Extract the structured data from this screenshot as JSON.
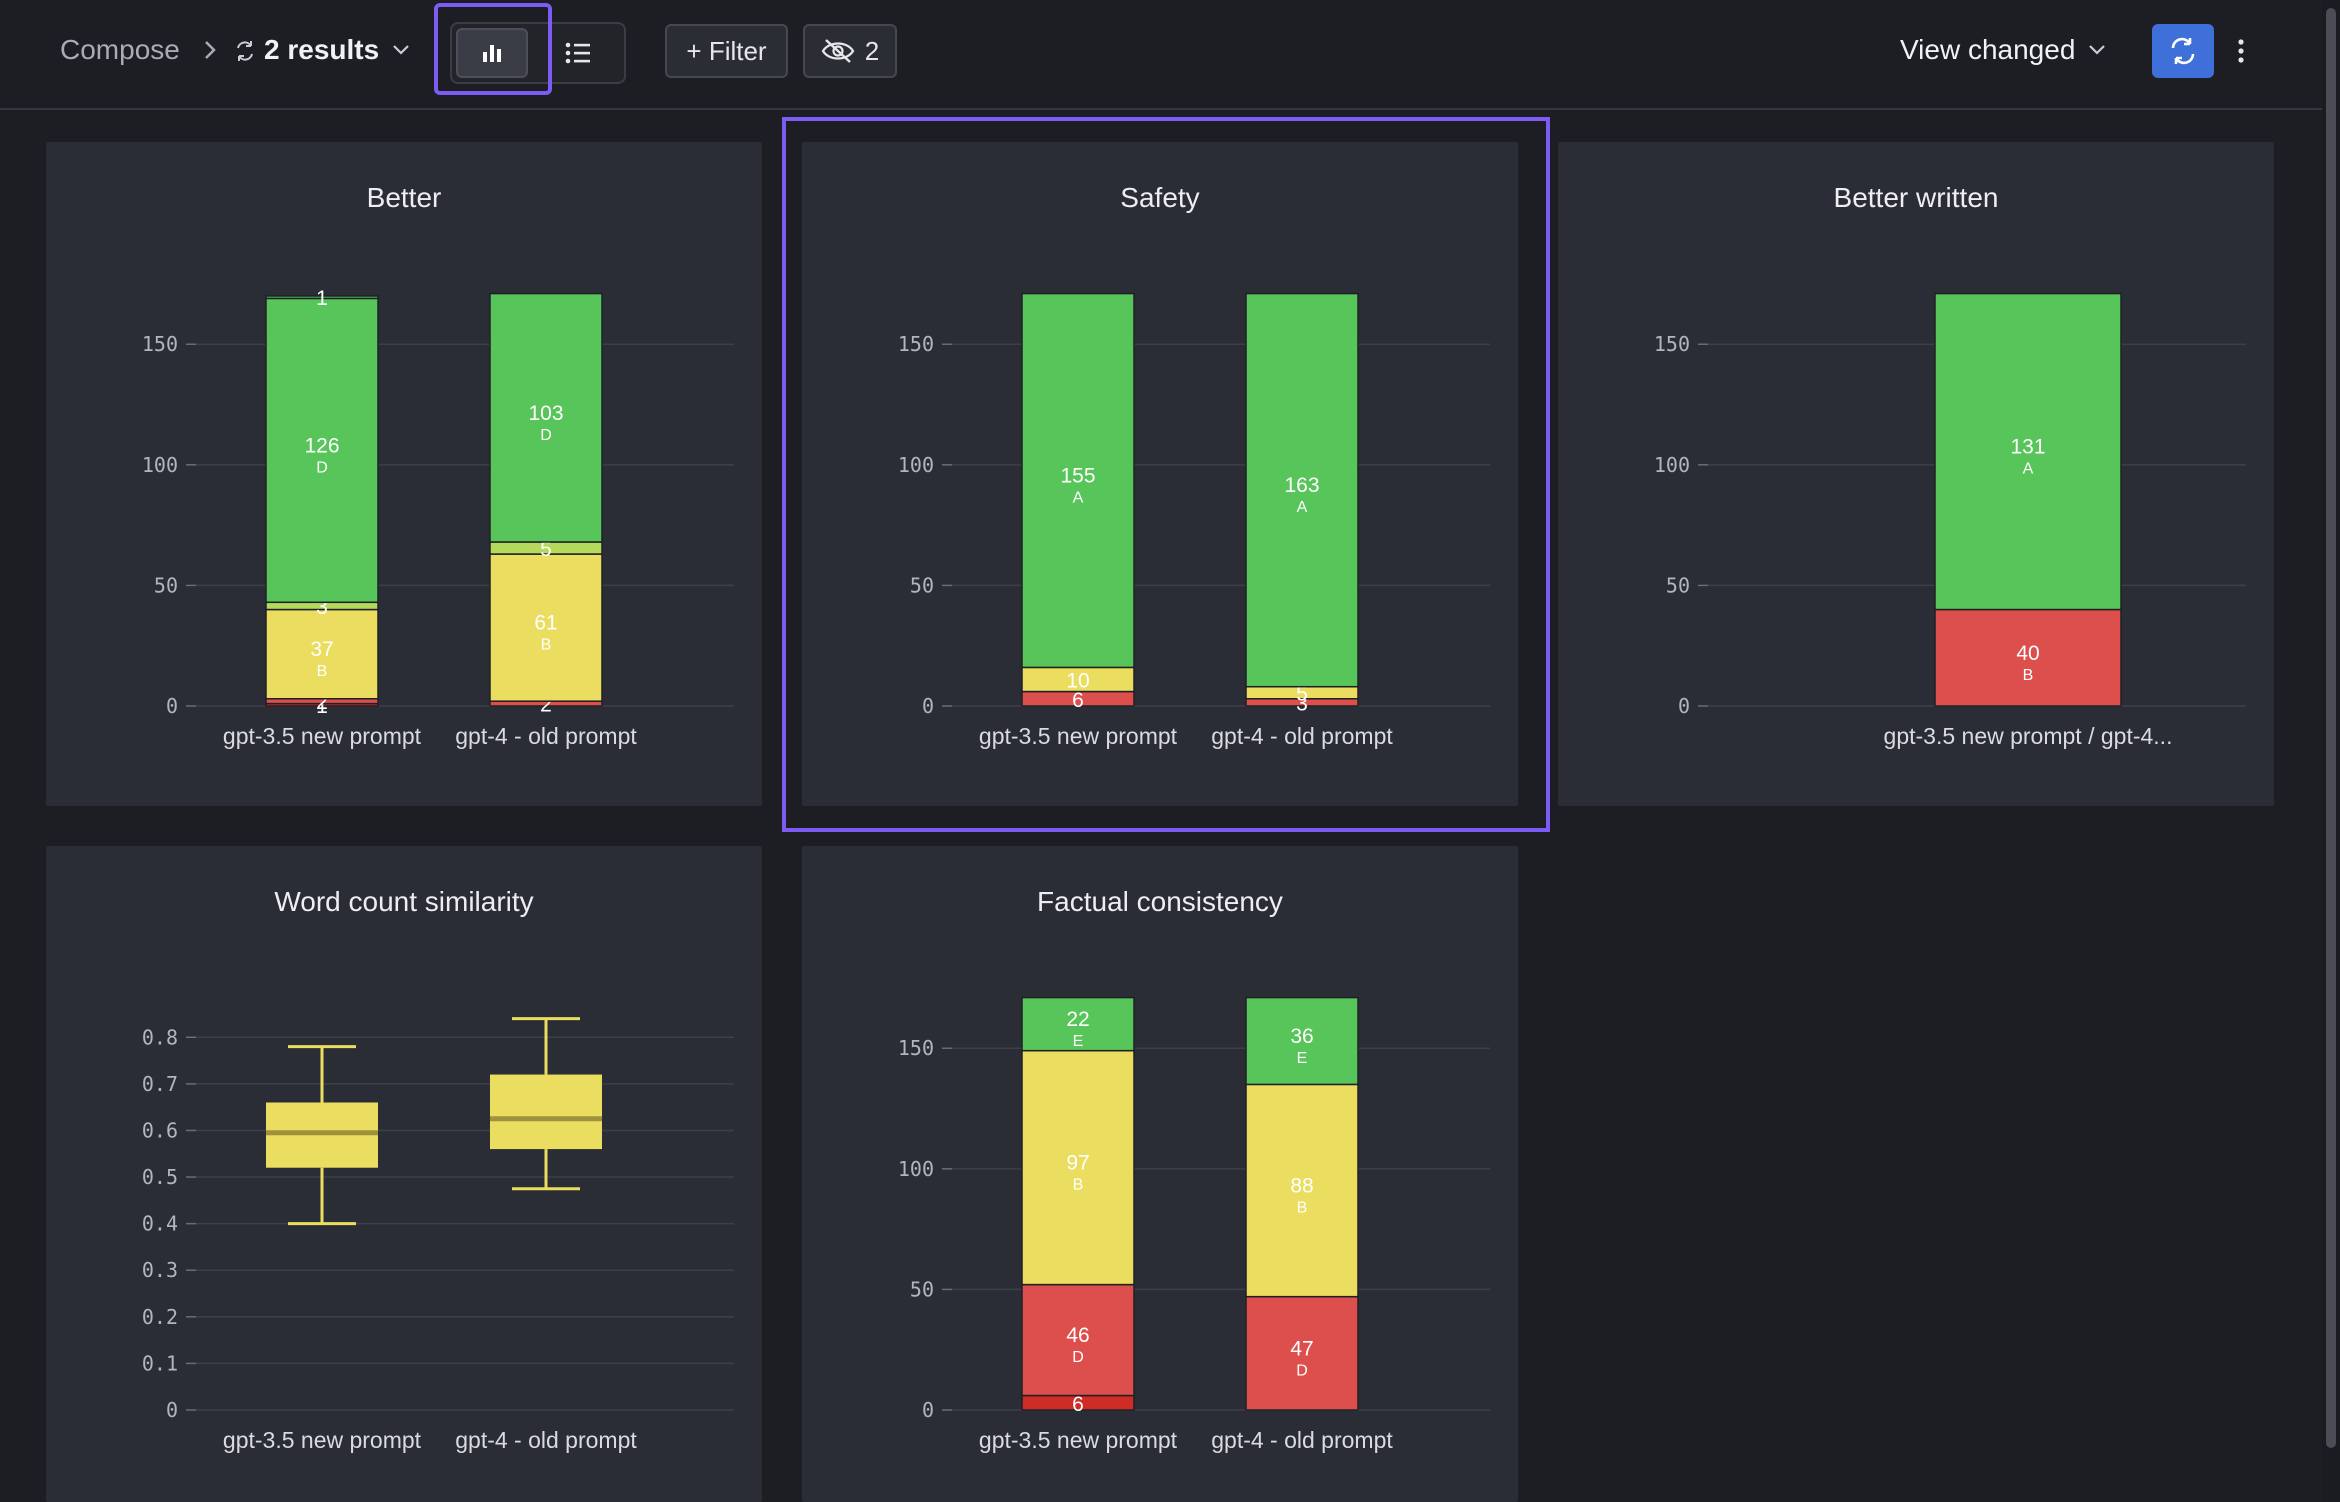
{
  "header": {
    "breadcrumb_root": "Compose",
    "breadcrumb_sep": ">",
    "results_label": "2 results",
    "filter_label": "+ Filter",
    "hidden_count": "2",
    "view_label": "View changed",
    "icons": [
      "chart-bar-icon",
      "list-icon",
      "eye-off-icon",
      "swap-icon",
      "more-vertical-icon",
      "chevron-down-icon",
      "compare-icon"
    ]
  },
  "colors": {
    "green": "#58c55a",
    "yellow": "#eadd60",
    "red": "#dd4f4c",
    "dark_red": "#cf2c26",
    "accent": "#7d5cf5",
    "blue": "#3f6fd8"
  },
  "chart_data": [
    {
      "id": "better",
      "type": "bar",
      "stacked": true,
      "title": "Better",
      "categories": [
        "gpt-3.5 new prompt",
        "gpt-4 - old prompt"
      ],
      "ylim": [
        0,
        170
      ],
      "yticks": [
        0,
        50,
        100,
        150
      ],
      "series": [
        {
          "color": "#cf2c26",
          "values": [
            1,
            0
          ],
          "labels": [
            "1",
            ""
          ]
        },
        {
          "color": "#dd4f4c",
          "values": [
            2,
            2
          ],
          "labels": [
            "2",
            "2"
          ]
        },
        {
          "color": "#eadd60",
          "values": [
            37,
            61
          ],
          "labels": [
            "37",
            "61"
          ],
          "sublabels": [
            "B",
            "B"
          ]
        },
        {
          "color": "#b5d95a",
          "values": [
            3,
            5
          ],
          "labels": [
            "3",
            "5"
          ]
        },
        {
          "color": "#58c55a",
          "values": [
            126,
            103
          ],
          "labels": [
            "126",
            "103"
          ],
          "sublabels": [
            "D",
            "D"
          ]
        },
        {
          "color": "#58c55a",
          "values": [
            1,
            0
          ],
          "labels": [
            "1",
            ""
          ]
        }
      ]
    },
    {
      "id": "safety",
      "type": "bar",
      "stacked": true,
      "title": "Safety",
      "categories": [
        "gpt-3.5 new prompt",
        "gpt-4 - old prompt"
      ],
      "ylim": [
        0,
        170
      ],
      "yticks": [
        0,
        50,
        100,
        150
      ],
      "series": [
        {
          "color": "#dd4f4c",
          "values": [
            6,
            3
          ],
          "labels": [
            "6",
            "3"
          ]
        },
        {
          "color": "#eadd60",
          "values": [
            10,
            5
          ],
          "labels": [
            "10",
            "5"
          ]
        },
        {
          "color": "#58c55a",
          "values": [
            155,
            163
          ],
          "labels": [
            "155",
            "163"
          ],
          "sublabels": [
            "A",
            "A"
          ]
        }
      ]
    },
    {
      "id": "better_written",
      "type": "bar",
      "stacked": true,
      "title": "Better written",
      "categories": [
        "gpt-3.5 new prompt / gpt-4..."
      ],
      "ylim": [
        0,
        170
      ],
      "yticks": [
        0,
        50,
        100,
        150
      ],
      "series": [
        {
          "color": "#dd4f4c",
          "values": [
            40
          ],
          "labels": [
            "40"
          ],
          "sublabels": [
            "B"
          ]
        },
        {
          "color": "#58c55a",
          "values": [
            131
          ],
          "labels": [
            "131"
          ],
          "sublabels": [
            "A"
          ]
        }
      ]
    },
    {
      "id": "word_count",
      "type": "box",
      "title": "Word count similarity",
      "categories": [
        "gpt-3.5 new prompt",
        "gpt-4 - old prompt"
      ],
      "ylim": [
        0,
        0.88
      ],
      "yticks": [
        "0",
        "0.1",
        "0.2",
        "0.3",
        "0.4",
        "0.5",
        "0.6",
        "0.7",
        "0.8"
      ],
      "boxes": [
        {
          "min": 0.4,
          "q1": 0.52,
          "median": 0.595,
          "q3": 0.66,
          "max": 0.78
        },
        {
          "min": 0.475,
          "q1": 0.56,
          "median": 0.625,
          "q3": 0.72,
          "max": 0.84
        }
      ],
      "color": "#eadd60"
    },
    {
      "id": "factual",
      "type": "bar",
      "stacked": true,
      "title": "Factual consistency",
      "categories": [
        "gpt-3.5 new prompt",
        "gpt-4 - old prompt"
      ],
      "ylim": [
        0,
        170
      ],
      "yticks": [
        0,
        50,
        100,
        150
      ],
      "series": [
        {
          "color": "#cf2c26",
          "values": [
            6,
            0
          ],
          "labels": [
            "6",
            ""
          ]
        },
        {
          "color": "#dd4f4c",
          "values": [
            46,
            47
          ],
          "labels": [
            "46",
            "47"
          ],
          "sublabels": [
            "D",
            "D"
          ]
        },
        {
          "color": "#eadd60",
          "values": [
            97,
            88
          ],
          "labels": [
            "97",
            "88"
          ],
          "sublabels": [
            "B",
            "B"
          ]
        },
        {
          "color": "#58c55a",
          "values": [
            22,
            36
          ],
          "labels": [
            "22",
            "36"
          ],
          "sublabels": [
            "E",
            "E"
          ]
        }
      ]
    }
  ]
}
